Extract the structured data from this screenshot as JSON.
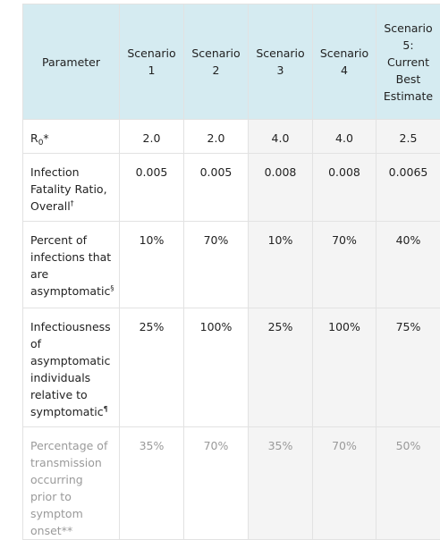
{
  "table": {
    "headers": [
      "Parameter",
      "Scenario 1",
      "Scenario 2",
      "Scenario 3",
      "Scenario 4",
      "Scenario 5: Current Best Estimate"
    ],
    "rows": [
      {
        "label": "R",
        "sub": "0",
        "suffix": "*",
        "values": [
          "2.0",
          "2.0",
          "4.0",
          "4.0",
          "2.5"
        ]
      },
      {
        "label": "Infection Fatality Ratio, Overall",
        "sup": "†",
        "values": [
          "0.005",
          "0.005",
          "0.008",
          "0.008",
          "0.0065"
        ]
      },
      {
        "label": "Percent of infections that are asymptomatic",
        "sup": "§",
        "values": [
          "10%",
          "70%",
          "10%",
          "70%",
          "40%"
        ]
      },
      {
        "label": "Infectiousness of asymptomatic individuals relative to symptomatic",
        "sup": "¶",
        "values": [
          "25%",
          "100%",
          "25%",
          "100%",
          "75%"
        ]
      },
      {
        "label": "Percentage of transmission occurring prior to symptom onset",
        "suffix": "**",
        "muted": true,
        "values": [
          "35%",
          "70%",
          "35%",
          "70%",
          "50%"
        ]
      }
    ]
  }
}
